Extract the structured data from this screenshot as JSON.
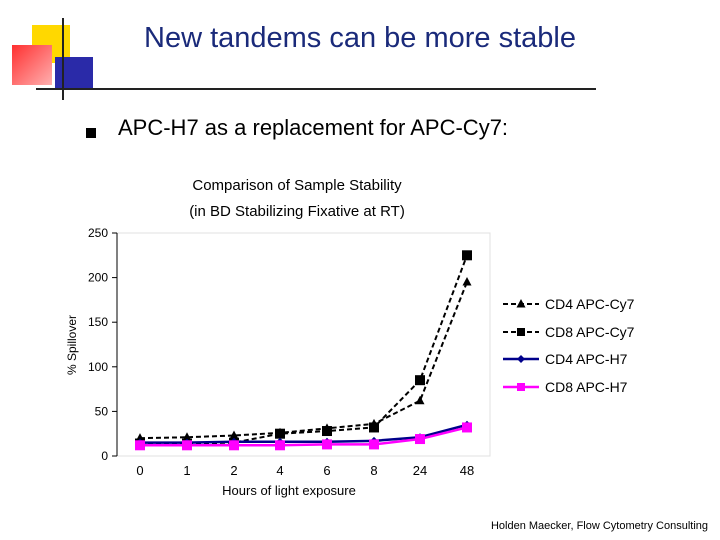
{
  "slide": {
    "title": "New tandems can be more stable",
    "bullet": "APC-H7 as a replacement for APC-Cy7:",
    "attribution": "Holden Maecker, Flow Cytometry Consulting"
  },
  "colors": {
    "title": "#1a2a7a",
    "deco_yellow": "#ffd800",
    "deco_red": "#ff4a4a",
    "deco_blue": "#2a2aa8"
  },
  "chart_data": {
    "type": "line",
    "title": "Comparison of Sample Stability",
    "subtitle": "(in BD Stabilizing Fixative at RT)",
    "xlabel": "Hours of light exposure",
    "ylabel": "% Spillover",
    "categories": [
      "0",
      "1",
      "2",
      "4",
      "6",
      "8",
      "24",
      "48"
    ],
    "ylim": [
      0,
      250
    ],
    "yticks": [
      0,
      50,
      100,
      150,
      200,
      250
    ],
    "legend_position": "right",
    "series": [
      {
        "name": "CD4 APC-Cy7",
        "color": "#000000",
        "marker": "triangle",
        "dash": true,
        "values": [
          20,
          21,
          23,
          26,
          31,
          36,
          62,
          195
        ]
      },
      {
        "name": "CD8 APC-Cy7",
        "color": "#000000",
        "marker": "square",
        "dash": true,
        "values": [
          14,
          14,
          15,
          25,
          28,
          32,
          85,
          225
        ]
      },
      {
        "name": "CD4 APC-H7",
        "color": "#00008b",
        "marker": "diamond",
        "dash": false,
        "values": [
          15,
          15,
          16,
          16,
          16,
          17,
          21,
          35
        ]
      },
      {
        "name": "CD8 APC-H7",
        "color": "#ff00ff",
        "marker": "square",
        "dash": false,
        "values": [
          12,
          12,
          12,
          12,
          13,
          13,
          19,
          32
        ]
      }
    ]
  }
}
